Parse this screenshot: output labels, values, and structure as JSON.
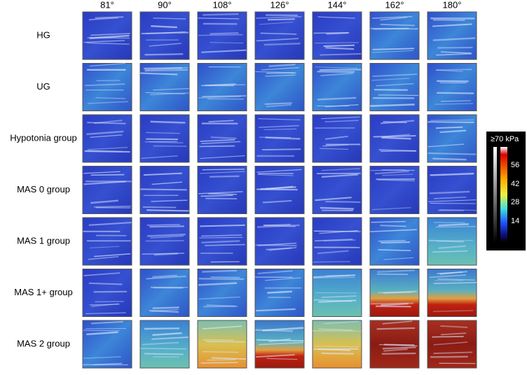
{
  "column_headers": [
    "81°",
    "90°",
    "108°",
    "126°",
    "144°",
    "162°",
    "180°"
  ],
  "row_labels": [
    "HG",
    "UG",
    "Hypotonia group",
    "MAS 0 group",
    "MAS 1 group",
    "MAS 1+ group",
    "MAS 2 group"
  ],
  "colorbar": {
    "title": "≥70 kPa",
    "ticks": [
      "56",
      "42",
      "28",
      "14"
    ]
  }
}
